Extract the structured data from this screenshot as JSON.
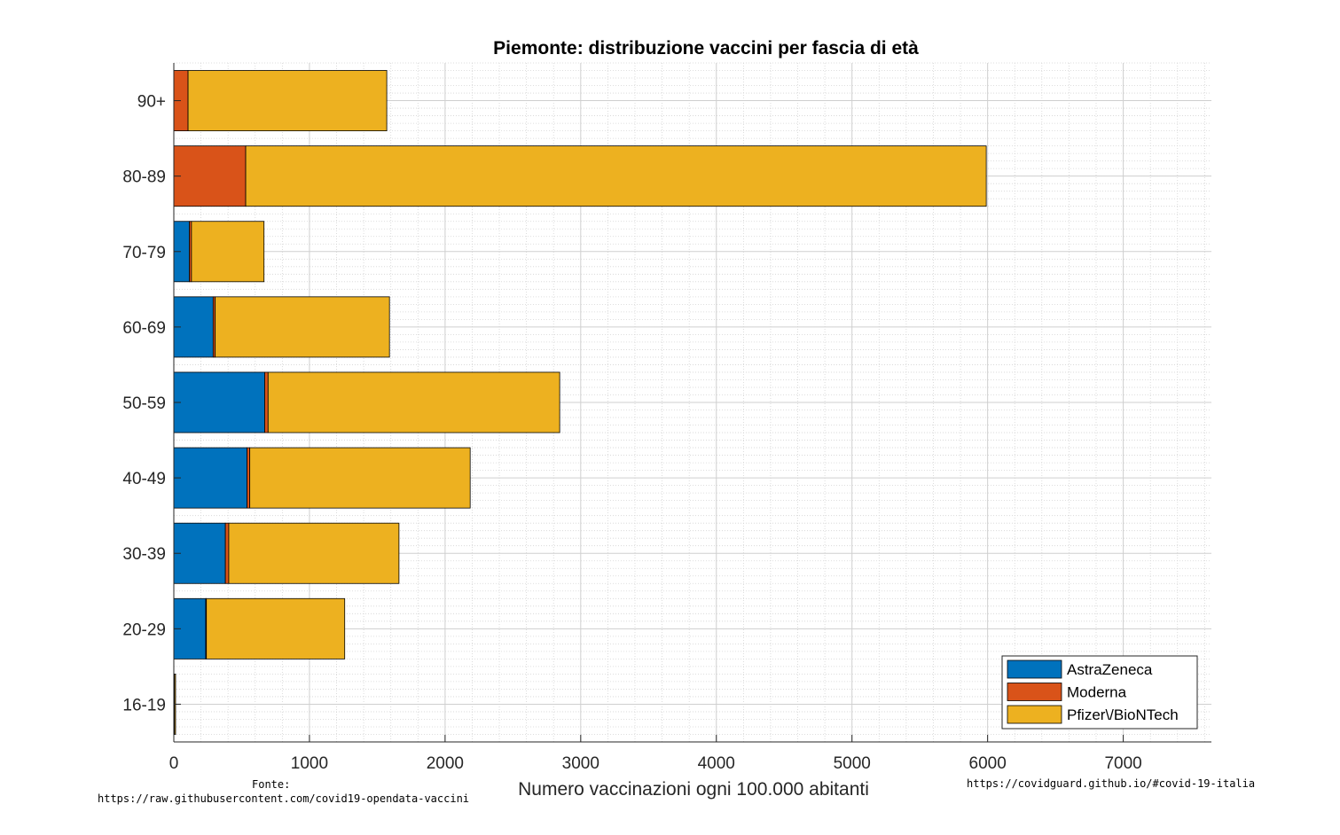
{
  "chart_data": {
    "type": "bar",
    "orientation": "horizontal",
    "stacked": true,
    "title": "Piemonte: distribuzione vaccini per fascia di età",
    "xlabel": "Numero vaccinazioni ogni 100.000 abitanti",
    "ylabel": "",
    "xlim": [
      0,
      7650
    ],
    "xticks": [
      "0",
      "1000",
      "2000",
      "3000",
      "4000",
      "5000",
      "6000",
      "7000"
    ],
    "xtick_values": [
      0,
      1000,
      2000,
      3000,
      4000,
      5000,
      6000,
      7000
    ],
    "grid": true,
    "minor_grid": true,
    "legend_position": "bottom-right",
    "categories": [
      "90+",
      "80-89",
      "70-79",
      "60-69",
      "50-59",
      "40-49",
      "30-39",
      "20-29",
      "16-19"
    ],
    "series": [
      {
        "name": "AstraZeneca",
        "color": "#0072BD",
        "values": [
          0,
          0,
          115,
          290,
          670,
          540,
          380,
          235,
          0
        ]
      },
      {
        "name": "Moderna",
        "color": "#D95319",
        "values": [
          105,
          530,
          15,
          15,
          25,
          20,
          25,
          5,
          5
        ]
      },
      {
        "name": "Pfizer\\/BioNTech",
        "color": "#EDB120",
        "values": [
          1465,
          5460,
          535,
          1285,
          2150,
          1625,
          1255,
          1020,
          8
        ]
      }
    ]
  },
  "footer": {
    "source_label": "Fonte:",
    "source_url": "https://raw.githubusercontent.com/covid19-opendata-vaccini",
    "site_url": "https://covidguard.github.io/#covid-19-italia"
  }
}
